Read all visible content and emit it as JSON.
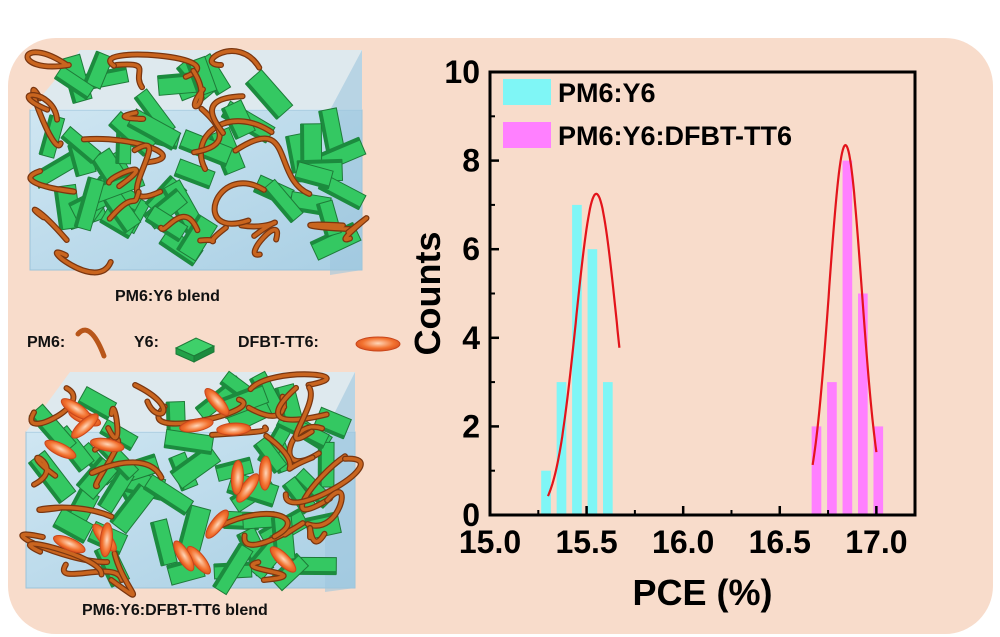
{
  "illustration": {
    "top_caption": "PM6:Y6 blend",
    "bottom_caption": "PM6:Y6:DFBT-TT6 blend",
    "legend": {
      "pm6_label": "PM6:",
      "y6_label": "Y6:",
      "dfbt_label": "DFBT-TT6:"
    },
    "colors": {
      "panel": "#f8dccb",
      "box_face": "#bcd9ea",
      "pm6_fiber": "#b8561a",
      "y6_crystal": "#2fc25a",
      "dfbt_ellipsoid": "#f06a2c"
    }
  },
  "chart_data": {
    "type": "bar",
    "xlabel": "PCE (%)",
    "ylabel": "Counts",
    "xlim": [
      15.0,
      17.2
    ],
    "ylim": [
      0,
      10
    ],
    "x_ticks": [
      "15.0",
      "15.5",
      "16.0",
      "16.5",
      "17.0"
    ],
    "x_tick_values": [
      15.0,
      15.5,
      16.0,
      16.5,
      17.0
    ],
    "y_ticks": [
      "0",
      "2",
      "4",
      "6",
      "8",
      "10"
    ],
    "y_tick_values": [
      0,
      2,
      4,
      6,
      8,
      10
    ],
    "legend_position": "top-left",
    "bin_width": 0.05,
    "series": [
      {
        "name": "PM6:Y6",
        "color": "#7ff6f6",
        "x": [
          15.29,
          15.37,
          15.45,
          15.53,
          15.61
        ],
        "values": [
          1,
          3,
          7,
          6,
          3
        ],
        "fit": {
          "type": "gaussian",
          "center": 15.55,
          "amplitude": 7.25,
          "sigma": 0.105,
          "range": [
            15.3,
            15.67
          ],
          "color": "#e3141b"
        }
      },
      {
        "name": "PM6:Y6:DFBT-TT6",
        "color": "#ff80ff",
        "x": [
          16.69,
          16.77,
          16.85,
          16.93,
          17.01
        ],
        "values": [
          2,
          3,
          8,
          5,
          2
        ],
        "fit": {
          "type": "gaussian",
          "center": 16.84,
          "amplitude": 8.35,
          "sigma": 0.085,
          "range": [
            16.67,
            17.0
          ],
          "color": "#e3141b"
        }
      }
    ]
  }
}
